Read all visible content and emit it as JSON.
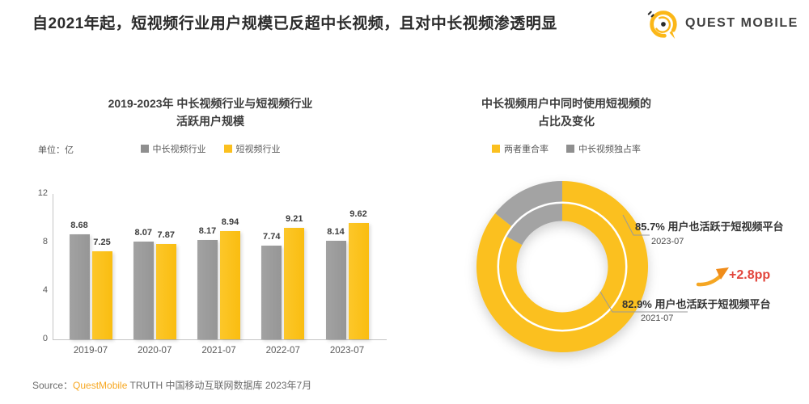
{
  "header": {
    "title": "自2021年起，短视频行业用户规模已反超中长视频，且对中长视频渗透明显",
    "logo_text": "QUEST MOBILE"
  },
  "colors": {
    "yellow": "#FBC01F",
    "bar_gray": "#9C9C9C",
    "donut_gray": "#A3A3A3",
    "red": "#E2453C",
    "arrow_orange": "#F5A623",
    "brand_orange": "#F7A823",
    "axis_gray": "#C4C4C4"
  },
  "chart_data": [
    {
      "type": "bar",
      "title_lines": [
        "2019-2023年 中长视频行业与短视频行业",
        "活跃用户规模"
      ],
      "unit_label": "单位：亿",
      "categories": [
        "2019-07",
        "2020-07",
        "2021-07",
        "2022-07",
        "2023-07"
      ],
      "series": [
        {
          "name": "中长视频行业",
          "color": "#9C9C9C",
          "values": [
            8.68,
            8.07,
            8.17,
            7.74,
            8.14
          ]
        },
        {
          "name": "短视频行业",
          "color": "#FBC01F",
          "values": [
            7.25,
            7.87,
            8.94,
            9.21,
            9.62
          ]
        }
      ],
      "ylim": [
        0,
        12
      ],
      "yticks": [
        0,
        4,
        8,
        12
      ],
      "grid": false,
      "legend_position": "top"
    },
    {
      "type": "pie",
      "subtype": "double-ring-donut",
      "title_lines": [
        "中长视频用户中同时使用短视频的",
        "占比及变化"
      ],
      "legend": [
        {
          "label": "两者重合率",
          "color": "#FBC01F"
        },
        {
          "label": "中长视频独占率",
          "color": "#A3A3A3"
        }
      ],
      "rings": [
        {
          "position": "outer",
          "period": "2023-07",
          "overlap_pct": 85.7,
          "exclusive_pct": 14.3,
          "label": "85.7% 用户也活跃于短视频平台"
        },
        {
          "position": "inner",
          "period": "2021-07",
          "overlap_pct": 82.9,
          "exclusive_pct": 17.1,
          "label": "82.9% 用户也活跃于短视频平台"
        }
      ],
      "change_label": "+2.8pp"
    }
  ],
  "source": {
    "prefix": "Source：",
    "brand": "QuestMobile",
    "rest": " TRUTH 中国移动互联网数据库 2023年7月"
  }
}
